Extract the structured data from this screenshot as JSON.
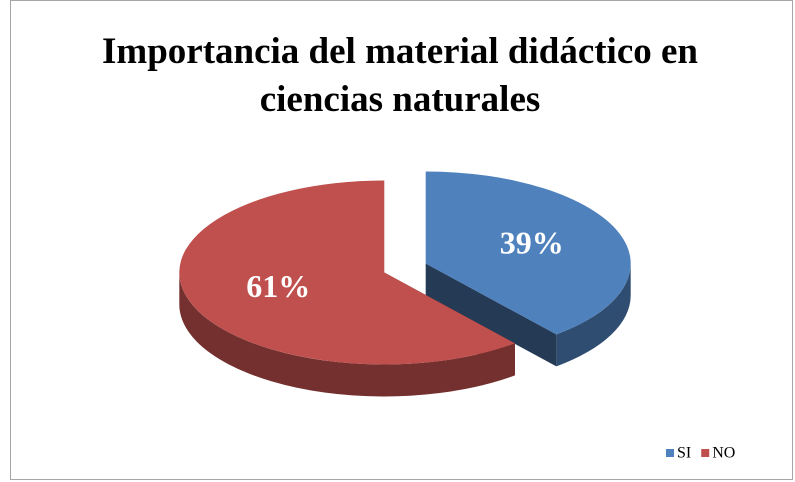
{
  "chart_data": {
    "type": "pie",
    "title": "Importancia del material didáctico en ciencias naturales",
    "categories": [
      "SI",
      "NO"
    ],
    "values": [
      39,
      61
    ],
    "value_labels": [
      "39%",
      "61%"
    ],
    "colors": [
      "#4f81bd",
      "#c0504d"
    ],
    "legend": "bottom-right"
  }
}
